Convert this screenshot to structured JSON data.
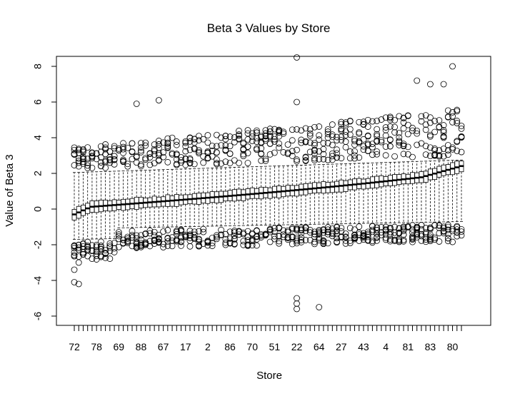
{
  "chart_data": {
    "type": "boxplot",
    "title": "Beta 3 Values by Store",
    "xlabel": "Store",
    "ylabel": "Value of Beta 3",
    "ylim": [
      -6.5,
      8.5
    ],
    "yticks": [
      -6,
      -4,
      -2,
      0,
      2,
      4,
      6,
      8
    ],
    "box_count": 88,
    "box_median_range": [
      -0.3,
      2.05
    ],
    "x_tick_labels": [
      "72",
      "78",
      "69",
      "88",
      "67",
      "17",
      "2",
      "86",
      "70",
      "51",
      "22",
      "64",
      "27",
      "43",
      "4",
      "81",
      "83",
      "80"
    ],
    "x_tick_label_box_index": [
      0,
      5,
      10,
      15,
      20,
      25,
      30,
      35,
      40,
      45,
      50,
      55,
      60,
      65,
      70,
      75,
      80,
      85
    ],
    "grid": false,
    "legend": "none",
    "colors": {
      "axis": "#000000",
      "box_fill": "#ffffff",
      "line": "#000000"
    }
  }
}
